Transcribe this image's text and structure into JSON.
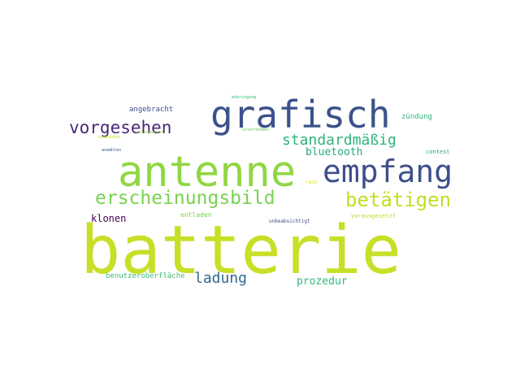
{
  "word_cloud": {
    "words": [
      {
        "text": "batterie",
        "color": "#c8df27"
      },
      {
        "text": "antenne",
        "color": "#90d743"
      },
      {
        "text": "grafisch",
        "color": "#3b528b"
      },
      {
        "text": "empfang",
        "color": "#3e4f8b"
      },
      {
        "text": "erscheinungsbild",
        "color": "#7ad151"
      },
      {
        "text": "betätigen",
        "color": "#c2df23"
      },
      {
        "text": "vorgesehen",
        "color": "#482878"
      },
      {
        "text": "standardmäßig",
        "color": "#2fb47c"
      },
      {
        "text": "bluetooth",
        "color": "#22a884"
      },
      {
        "text": "ladung",
        "color": "#31688e"
      },
      {
        "text": "prozedur",
        "color": "#35b779"
      },
      {
        "text": "klonen",
        "color": "#440154"
      },
      {
        "text": "angebracht",
        "color": "#3b528b"
      },
      {
        "text": "zündung",
        "color": "#2fb47c"
      },
      {
        "text": "benutzeroberfläche",
        "color": "#3dbc74"
      },
      {
        "text": "entladen",
        "color": "#7ad151"
      },
      {
        "text": "contest",
        "color": "#22a884"
      },
      {
        "text": "vorausgesetzt",
        "color": "#b5de2b"
      },
      {
        "text": "unbeabsichtigt",
        "color": "#3e4989"
      },
      {
        "text": "rain",
        "color": "#d5e21a"
      },
      {
        "text": "anwählen",
        "color": "#39568c"
      },
      {
        "text": "anbringung",
        "color": "#35b779"
      },
      {
        "text": "unterwerfen",
        "color": "#a0da39"
      },
      {
        "text": "entzünden",
        "color": "#c8e020"
      },
      {
        "text": "unternehmen",
        "color": "#5ec962"
      }
    ]
  }
}
